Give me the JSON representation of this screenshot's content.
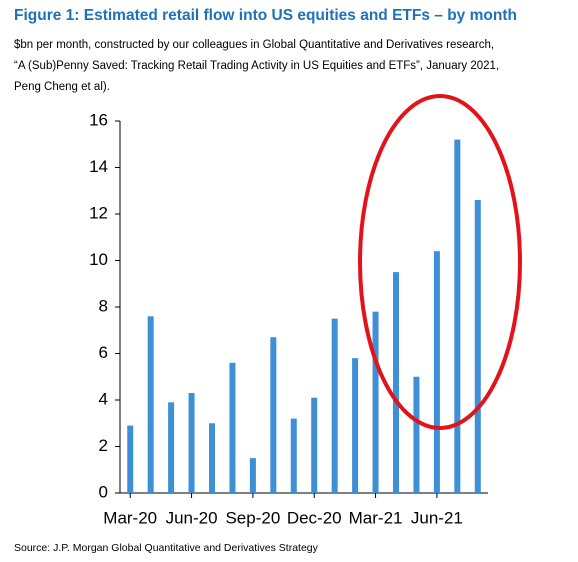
{
  "chart_data": {
    "type": "bar",
    "title": "Figure 1: Estimated retail flow into US equities and ETFs – by month",
    "subtitle": [
      "$bn per month, constructed by our colleagues in Global Quantitative and Derivatives research,",
      "“A (Sub)Penny Saved: Tracking Retail Trading Activity in US Equities and ETFs”, January 2021,",
      "Peng Cheng et al)."
    ],
    "source": "Source: J.P. Morgan Global Quantitative and Derivatives Strategy",
    "categories": [
      "Mar-20",
      null,
      null,
      "Jun-20",
      null,
      null,
      "Sep-20",
      null,
      null,
      "Dec-20",
      null,
      null,
      "Mar-21",
      null,
      null,
      "Jun-21",
      null,
      null
    ],
    "values": [
      2.9,
      7.6,
      3.9,
      4.3,
      3.0,
      5.6,
      1.5,
      6.7,
      3.2,
      4.1,
      7.5,
      5.8,
      7.8,
      9.5,
      5.0,
      10.4,
      15.2,
      12.6
    ],
    "color": "#3d8fd6",
    "ylim": [
      0,
      16
    ],
    "yticks": [
      0,
      2,
      4,
      6,
      8,
      10,
      12,
      14,
      16
    ],
    "grid": false
  }
}
